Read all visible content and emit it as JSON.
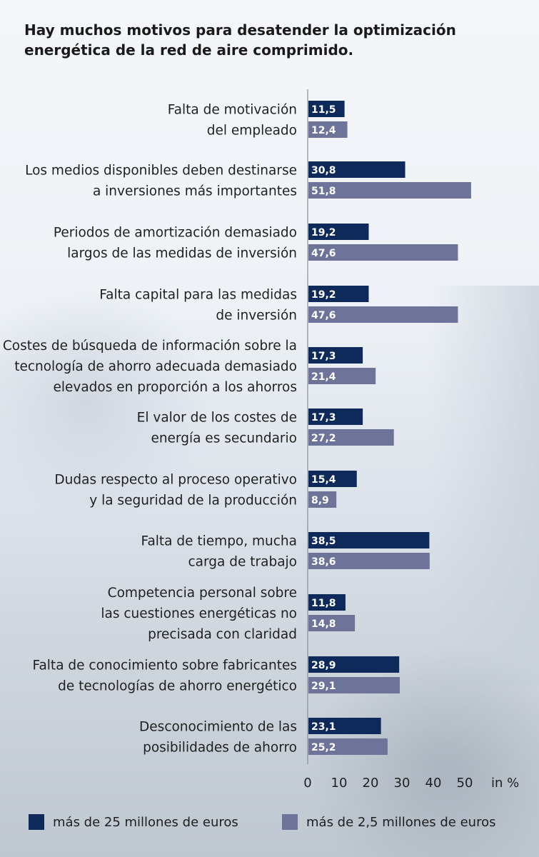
{
  "title": "Hay muchos motivos para desatender la optimización energética de la red de aire comprimido.",
  "chart_data": {
    "type": "bar",
    "orientation": "horizontal",
    "title": "Hay muchos motivos para desatender la optimización energética de la red de aire comprimido.",
    "xlabel": "",
    "ylabel": "",
    "unit_label": "in %",
    "xlim": [
      0,
      60
    ],
    "xticks": [
      0,
      10,
      20,
      30,
      40,
      50
    ],
    "grid": false,
    "legend_position": "bottom",
    "categories": [
      [
        "Falta de motivación",
        "del empleado"
      ],
      [
        "Los medios disponibles deben destinarse",
        "a inversiones más importantes"
      ],
      [
        "Periodos de amortización demasiado",
        "largos de las medidas de inversión"
      ],
      [
        "Falta capital para las medidas",
        "de inversión"
      ],
      [
        "Costes de búsqueda de información sobre la",
        "tecnología de ahorro adecuada demasiado",
        "elevados en proporción a los ahorros"
      ],
      [
        "El valor de los costes de",
        "energía es secundario"
      ],
      [
        "Dudas respecto al proceso operativo",
        "y la seguridad de la producción"
      ],
      [
        "Falta de tiempo, mucha",
        "carga de trabajo"
      ],
      [
        "Competencia personal sobre",
        "las cuestiones energéticas no",
        "precisada con claridad"
      ],
      [
        "Falta de conocimiento sobre fabricantes",
        "de tecnologías de ahorro energético"
      ],
      [
        "Desconocimiento de las",
        "posibilidades de ahorro"
      ]
    ],
    "series": [
      {
        "name": "más de 25 millones de euros",
        "color": "#0d2a5a",
        "values": [
          11.5,
          30.8,
          19.2,
          19.2,
          17.3,
          17.3,
          15.4,
          38.5,
          11.8,
          28.9,
          23.1
        ],
        "labels": [
          "11,5",
          "30,8",
          "19,2",
          "19,2",
          "17,3",
          "17,3",
          "15,4",
          "38,5",
          "11,8",
          "28,9",
          "23,1"
        ]
      },
      {
        "name": "más de 2,5 millones de euros",
        "color": "#6e7499",
        "values": [
          12.4,
          51.8,
          47.6,
          47.6,
          21.4,
          27.2,
          8.9,
          38.6,
          14.8,
          29.1,
          25.2
        ],
        "labels": [
          "12,4",
          "51,8",
          "47,6",
          "47,6",
          "21,4",
          "27,2",
          "8,9",
          "38,6",
          "14,8",
          "29,1",
          "25,2"
        ]
      }
    ]
  }
}
